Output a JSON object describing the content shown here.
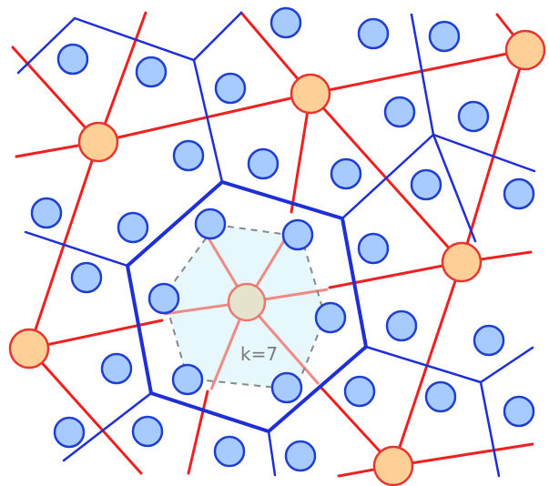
{
  "label": "k=7",
  "colors": {
    "red_line": "#ef2020",
    "blue_line": "#1f2fd6",
    "small_fill": "#a8cbff",
    "small_stroke": "#1f3fd0",
    "big_fill": "#ffcf98",
    "big_stroke": "#e8352d",
    "center_fill": "#e6e3cc",
    "center_stroke": "#e87a74",
    "highlight_fill": "#e6f8fb",
    "dash": "#888888",
    "label": "#7a7a7a"
  }
}
